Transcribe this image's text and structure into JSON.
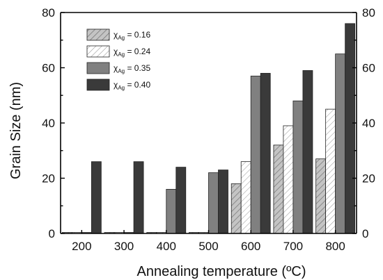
{
  "chart_data": {
    "type": "bar",
    "xlabel": "Annealing temperature (ºC)",
    "ylabel": "Grain Size (nm)",
    "categories": [
      "200",
      "300",
      "400",
      "500",
      "600",
      "700",
      "800"
    ],
    "ylim": [
      0,
      80
    ],
    "yticks": [
      "0",
      "20",
      "40",
      "60",
      "80"
    ],
    "right_yticks": [
      "0",
      "20",
      "40",
      "60",
      "80"
    ],
    "grid": false,
    "legend_position": "top-left",
    "series": [
      {
        "name": "χAg = 0.16",
        "name_main": "χ",
        "name_sub": "Ag",
        "name_value": " = 0.16",
        "pattern": "diagonal-hatch-gray",
        "color": "#b8b8b8",
        "values": [
          0,
          0,
          0,
          0,
          18,
          32,
          27
        ]
      },
      {
        "name": "χAg = 0.24",
        "name_main": "χ",
        "name_sub": "Ag",
        "name_value": " = 0.24",
        "pattern": "diagonal-hatch-white",
        "color": "#ffffff",
        "values": [
          0,
          0,
          0,
          0,
          26,
          39,
          45
        ]
      },
      {
        "name": "χAg = 0.35",
        "name_main": "χ",
        "name_sub": "Ag",
        "name_value": " = 0.35",
        "pattern": "solid",
        "color": "#808080",
        "values": [
          0,
          0,
          16,
          22,
          57,
          48,
          65
        ]
      },
      {
        "name": "χAg = 0.40",
        "name_main": "χ",
        "name_sub": "Ag",
        "name_value": " = 0.40",
        "pattern": "solid",
        "color": "#3a3a3a",
        "values": [
          26,
          26,
          24,
          23,
          58,
          59,
          76
        ]
      }
    ]
  }
}
